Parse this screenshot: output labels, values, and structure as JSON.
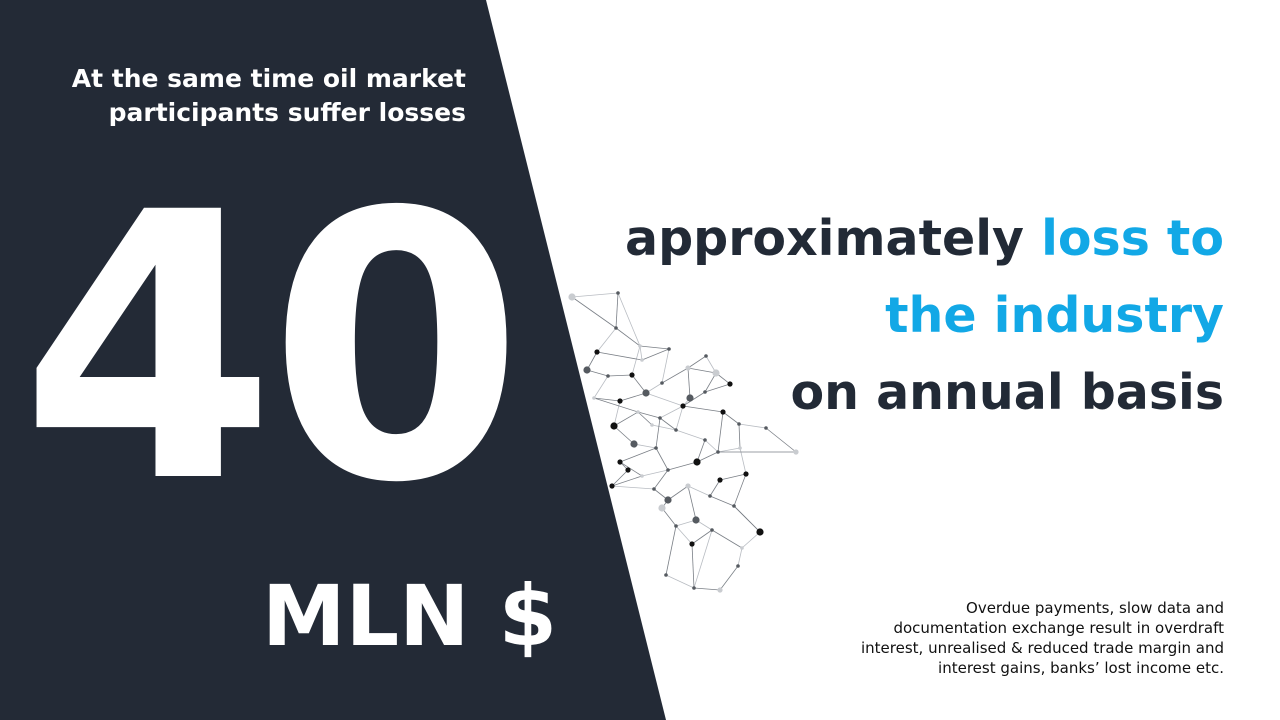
{
  "slide": {
    "intro_line1": "At the same time oil market",
    "intro_line2": "participants suffer losses",
    "big_number": "40",
    "unit": "MLN $",
    "headline": {
      "word1": "approximately",
      "accent_line1": "loss to",
      "accent_line2": "the industry",
      "line3": "on annual basis"
    },
    "footnote": {
      "line1": "Overdue payments, slow data and",
      "line2": "documentation exchange result in overdraft",
      "line3": "interest, unrealised & reduced trade margin and",
      "line4": "interest gains, banks’ lost income etc."
    },
    "colors": {
      "panel": "#232a36",
      "accent": "#12a8e6",
      "text_dark": "#222a36",
      "background": "#ffffff"
    }
  }
}
